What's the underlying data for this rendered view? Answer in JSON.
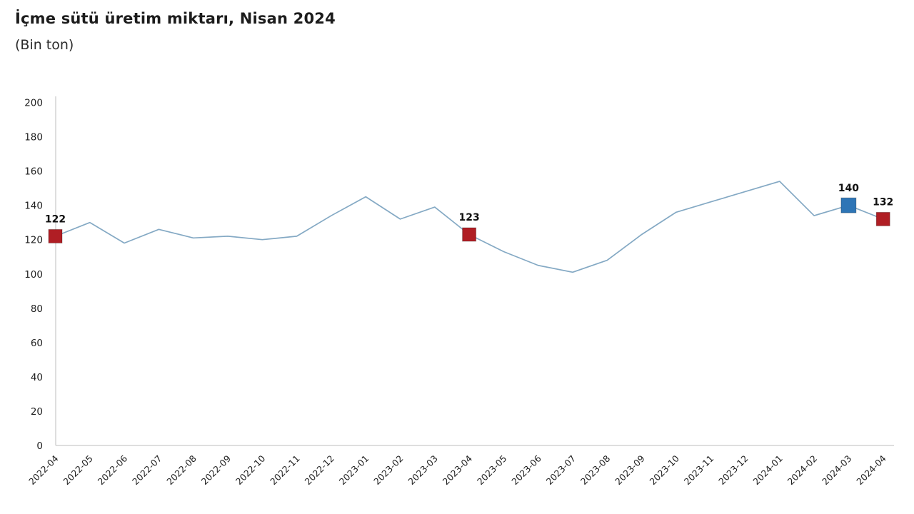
{
  "header": {
    "title": "İçme sütü üretim miktarı, Nisan 2024",
    "subtitle": "(Bin ton)"
  },
  "chart_data": {
    "type": "line",
    "title": "İçme sütü üretim miktarı, Nisan 2024",
    "subtitle": "(Bin ton)",
    "xlabel": "",
    "ylabel": "",
    "ylim": [
      0,
      200
    ],
    "ytick_step": 20,
    "yticks": [
      0,
      20,
      40,
      60,
      80,
      100,
      120,
      140,
      160,
      180,
      200
    ],
    "grid": false,
    "legend": null,
    "categories": [
      "2022-04",
      "2022-05",
      "2022-06",
      "2022-07",
      "2022-08",
      "2022-09",
      "2022-10",
      "2022-11",
      "2022-12",
      "2023-01",
      "2023-02",
      "2023-03",
      "2023-04",
      "2023-05",
      "2023-06",
      "2023-07",
      "2023-08",
      "2023-09",
      "2023-10",
      "2023-11",
      "2023-12",
      "2024-01",
      "2024-02",
      "2024-03",
      "2024-04"
    ],
    "values": [
      122,
      130,
      118,
      126,
      121,
      122,
      120,
      122,
      134,
      145,
      132,
      139,
      123,
      113,
      105,
      101,
      108,
      123,
      136,
      142,
      148,
      154,
      134,
      140,
      132
    ],
    "annotations": [
      {
        "index": 0,
        "label": "122",
        "marker": "square",
        "marker_color": "#b01e24"
      },
      {
        "index": 12,
        "label": "123",
        "marker": "square",
        "marker_color": "#b01e24"
      },
      {
        "index": 23,
        "label": "140",
        "marker": "square",
        "marker_color": "#2e75b6"
      },
      {
        "index": 24,
        "label": "132",
        "marker": "square",
        "marker_color": "#b01e24"
      }
    ],
    "colors": {
      "line": "#84a9c4",
      "axis": "#c9c9c9",
      "tick_text": "#1f1f1f",
      "annotation_text": "#111111",
      "red_marker": "#b01e24",
      "blue_marker": "#2e75b6",
      "background": "#ffffff"
    }
  }
}
